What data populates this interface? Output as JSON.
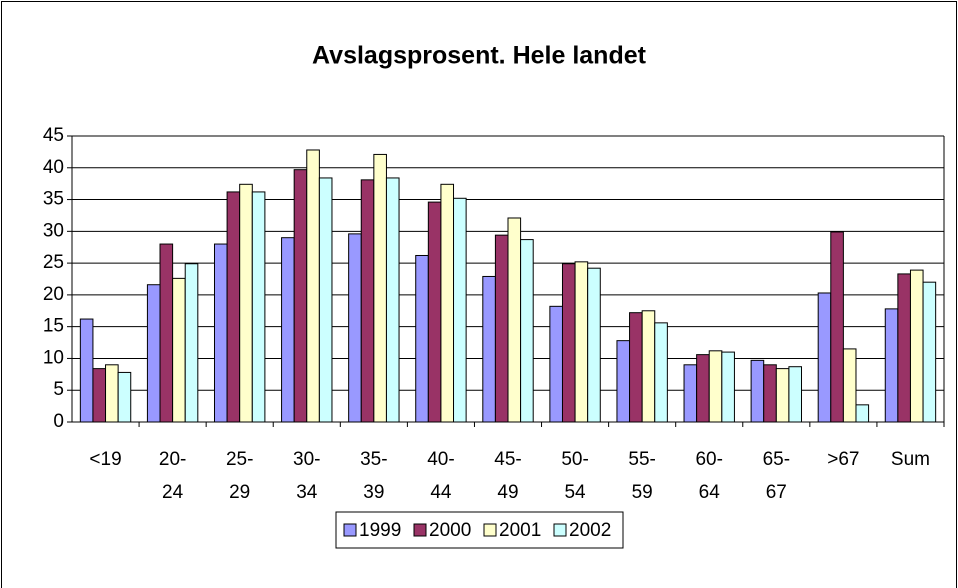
{
  "chart_data": {
    "type": "bar",
    "title": "Avslagsprosent. Hele landet",
    "categories": [
      "<19",
      "20-24",
      "25-29",
      "30-34",
      "35-39",
      "40-44",
      "45-49",
      "50-54",
      "55-59",
      "60-64",
      "65-67",
      ">67",
      "Sum"
    ],
    "series": [
      {
        "name": "1999",
        "color": "#9999ff",
        "values": [
          16.2,
          21.6,
          28.0,
          29.0,
          29.6,
          26.2,
          22.9,
          18.2,
          12.8,
          9.0,
          9.7,
          20.3,
          17.8
        ]
      },
      {
        "name": "2000",
        "color": "#993366",
        "values": [
          8.4,
          28.0,
          36.2,
          39.7,
          38.1,
          34.6,
          29.4,
          24.9,
          17.2,
          10.6,
          9.0,
          29.9,
          23.3
        ]
      },
      {
        "name": "2001",
        "color": "#ffffcc",
        "values": [
          9.0,
          22.6,
          37.4,
          42.8,
          42.1,
          37.4,
          32.1,
          25.2,
          17.5,
          11.2,
          8.4,
          11.5,
          23.9
        ]
      },
      {
        "name": "2002",
        "color": "#ccffff",
        "values": [
          7.8,
          24.9,
          36.2,
          38.4,
          38.4,
          35.2,
          28.7,
          24.2,
          15.6,
          11.0,
          8.7,
          2.7,
          22.0
        ]
      }
    ],
    "ylim": [
      0,
      45
    ],
    "yticks": [
      0,
      5,
      10,
      15,
      20,
      25,
      30,
      35,
      40,
      45
    ],
    "grid": true,
    "legend": "bottom"
  }
}
